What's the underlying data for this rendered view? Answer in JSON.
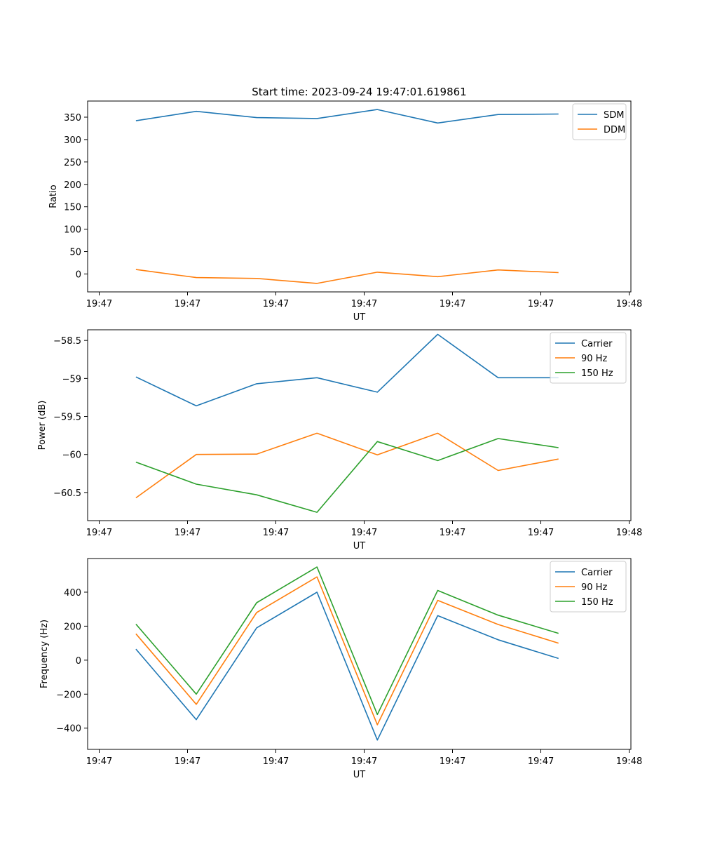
{
  "chart_data": [
    {
      "type": "line",
      "title": "Start time: 2023-09-24 19:47:01.619861",
      "xlabel": "UT",
      "ylabel": "Ratio",
      "x_tick_labels": [
        "19:47",
        "19:47",
        "19:47",
        "19:47",
        "19:47",
        "19:47",
        "19:48"
      ],
      "x": [
        1,
        2,
        3,
        4,
        5,
        6,
        7,
        8
      ],
      "xlim": [
        0.2,
        9.2
      ],
      "ylim": [
        -40,
        386
      ],
      "y_ticks": [
        0,
        50,
        100,
        150,
        200,
        250,
        300,
        350
      ],
      "legend_position": "top-right",
      "series": [
        {
          "name": "SDM",
          "color": "#1f77b4",
          "values": [
            342,
            363,
            349,
            347,
            367,
            337,
            356,
            357
          ]
        },
        {
          "name": "DDM",
          "color": "#ff7f0e",
          "values": [
            10,
            -8,
            -10,
            -21,
            4,
            -6,
            9,
            3
          ]
        }
      ]
    },
    {
      "type": "line",
      "title": "",
      "xlabel": "UT",
      "ylabel": "Power (dB)",
      "x_tick_labels": [
        "19:47",
        "19:47",
        "19:47",
        "19:47",
        "19:47",
        "19:47",
        "19:48"
      ],
      "x": [
        1,
        2,
        3,
        4,
        5,
        6,
        7,
        8
      ],
      "xlim": [
        0.2,
        9.2
      ],
      "ylim": [
        -60.87,
        -58.36
      ],
      "y_ticks": [
        -58.5,
        -59.0,
        -59.5,
        -60.0,
        -60.5
      ],
      "legend_position": "top-right",
      "series": [
        {
          "name": "Carrier",
          "color": "#1f77b4",
          "values": [
            -58.98,
            -59.36,
            -59.07,
            -58.99,
            -59.18,
            -58.42,
            -58.99,
            -58.99
          ]
        },
        {
          "name": "90 Hz",
          "color": "#ff7f0e",
          "values": [
            -60.57,
            -60.0,
            -59.995,
            -59.72,
            -60.005,
            -59.72,
            -60.21,
            -60.06
          ]
        },
        {
          "name": "150 Hz",
          "color": "#2ca02c",
          "values": [
            -60.1,
            -60.39,
            -60.53,
            -60.76,
            -59.83,
            -60.08,
            -59.79,
            -59.91
          ]
        }
      ]
    },
    {
      "type": "line",
      "title": "",
      "xlabel": "UT",
      "ylabel": "Frequency (Hz)",
      "x_tick_labels": [
        "19:47",
        "19:47",
        "19:47",
        "19:47",
        "19:47",
        "19:47",
        "19:48"
      ],
      "x": [
        1,
        2,
        3,
        4,
        5,
        6,
        7,
        8
      ],
      "xlim": [
        0.2,
        9.2
      ],
      "ylim": [
        -525,
        598
      ],
      "y_ticks": [
        400,
        200,
        0,
        -200,
        -400
      ],
      "legend_position": "top-right",
      "series": [
        {
          "name": "Carrier",
          "color": "#1f77b4",
          "values": [
            65,
            -350,
            190,
            400,
            -470,
            262,
            120,
            10
          ]
        },
        {
          "name": "90 Hz",
          "color": "#ff7f0e",
          "values": [
            155,
            -260,
            280,
            490,
            -380,
            352,
            210,
            100
          ]
        },
        {
          "name": "150 Hz",
          "color": "#2ca02c",
          "values": [
            212,
            -200,
            338,
            548,
            -320,
            410,
            265,
            158
          ]
        }
      ]
    }
  ]
}
